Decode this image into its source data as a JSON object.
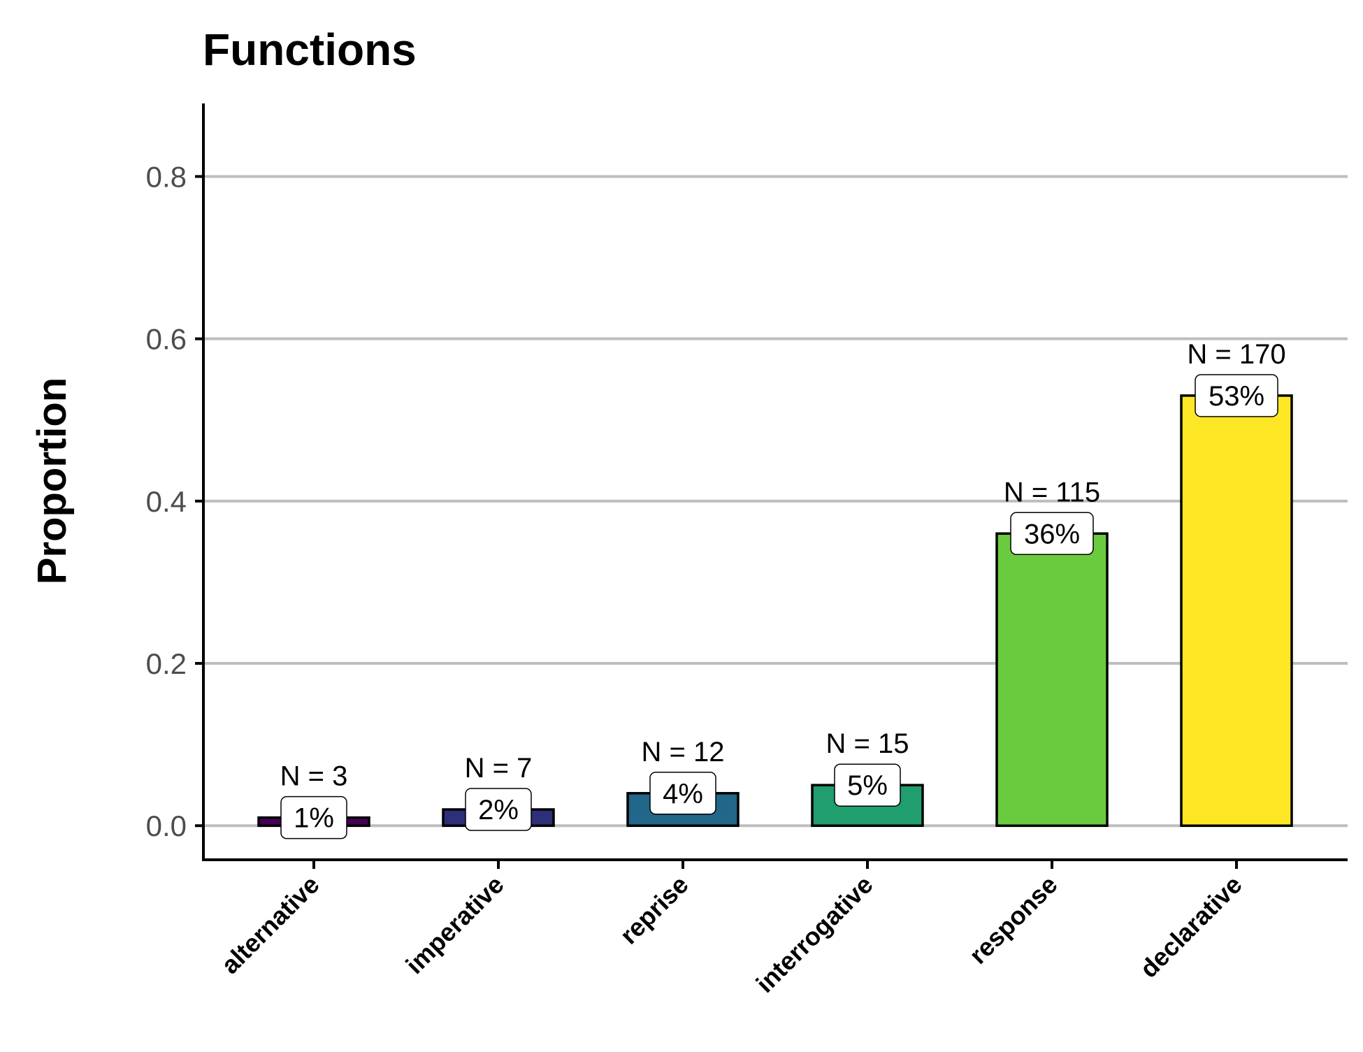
{
  "chart_data": {
    "type": "bar",
    "title": "Functions",
    "xlabel": "",
    "ylabel": "Proportion",
    "ylim": [
      -0.042,
      0.89
    ],
    "yticks": [
      0.0,
      0.2,
      0.4,
      0.6,
      0.8
    ],
    "ytick_labels": [
      "0.0",
      "0.2",
      "0.4",
      "0.6",
      "0.8"
    ],
    "grid": "horizontal",
    "categories": [
      "alternative",
      "imperative",
      "reprise",
      "interrogative",
      "response",
      "declarative"
    ],
    "values": [
      0.01,
      0.02,
      0.04,
      0.05,
      0.36,
      0.53
    ],
    "percent_labels": [
      "1%",
      "2%",
      "4%",
      "5%",
      "36%",
      "53%"
    ],
    "count_labels": [
      "N = 3",
      "N = 7",
      "N = 12",
      "N = 15",
      "N = 115",
      "N = 170"
    ],
    "colors": [
      "#440154",
      "#2d2f78",
      "#22668a",
      "#209e6e",
      "#6bcb3f",
      "#fde725"
    ],
    "grid_color": "#bebebe",
    "axis_color": "#000000"
  }
}
